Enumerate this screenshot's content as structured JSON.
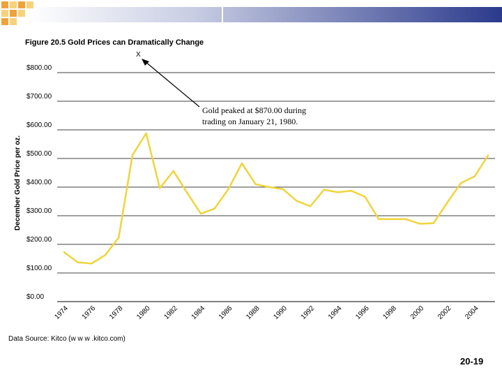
{
  "chart_data": {
    "type": "line",
    "title": "Figure 20.5 Gold Prices can Dramatically Change",
    "ylabel": "December Gold Price per oz.",
    "xlabel": "",
    "ylim": [
      0,
      800
    ],
    "yticks": [
      "$800.00",
      "$700.00",
      "$600.00",
      "$500.00",
      "$400.00",
      "$300.00",
      "$200.00",
      "$100.00",
      "$0.00"
    ],
    "xtick_labels": [
      "1974",
      "1976",
      "1978",
      "1980",
      "1982",
      "1984",
      "1986",
      "1988",
      "1990",
      "1992",
      "1994",
      "1996",
      "1998",
      "2000",
      "2002",
      "2004"
    ],
    "grid": true,
    "series": [
      {
        "name": "December Gold Price",
        "color": "#f0d43a",
        "x": [
          1974,
          1975,
          1976,
          1977,
          1978,
          1979,
          1980,
          1981,
          1982,
          1983,
          1984,
          1985,
          1986,
          1987,
          1988,
          1989,
          1990,
          1991,
          1992,
          1993,
          1994,
          1995,
          1996,
          1997,
          1998,
          1999,
          2000,
          2001,
          2002,
          2003,
          2004,
          2005
        ],
        "values": [
          173,
          137,
          133,
          162,
          224,
          511,
          588,
          396,
          456,
          380,
          307,
          325,
          392,
          483,
          410,
          400,
          393,
          352,
          333,
          391,
          382,
          387,
          366,
          288,
          288,
          288,
          272,
          274,
          345,
          414,
          437,
          511
        ]
      }
    ],
    "annotation": {
      "marker": "X",
      "text_lines": [
        "Gold peaked at $870.00 during",
        "trading on January 21, 1980."
      ]
    }
  },
  "footer": {
    "source": "Data Source: Kitco (w w w .kitco.com)",
    "slide_number": "20-19"
  },
  "colors": {
    "accent": "#2b3a8c",
    "deco_orange": "#f0a23a",
    "deco_yellow": "#f6d27a",
    "line": "#f0d43a"
  }
}
